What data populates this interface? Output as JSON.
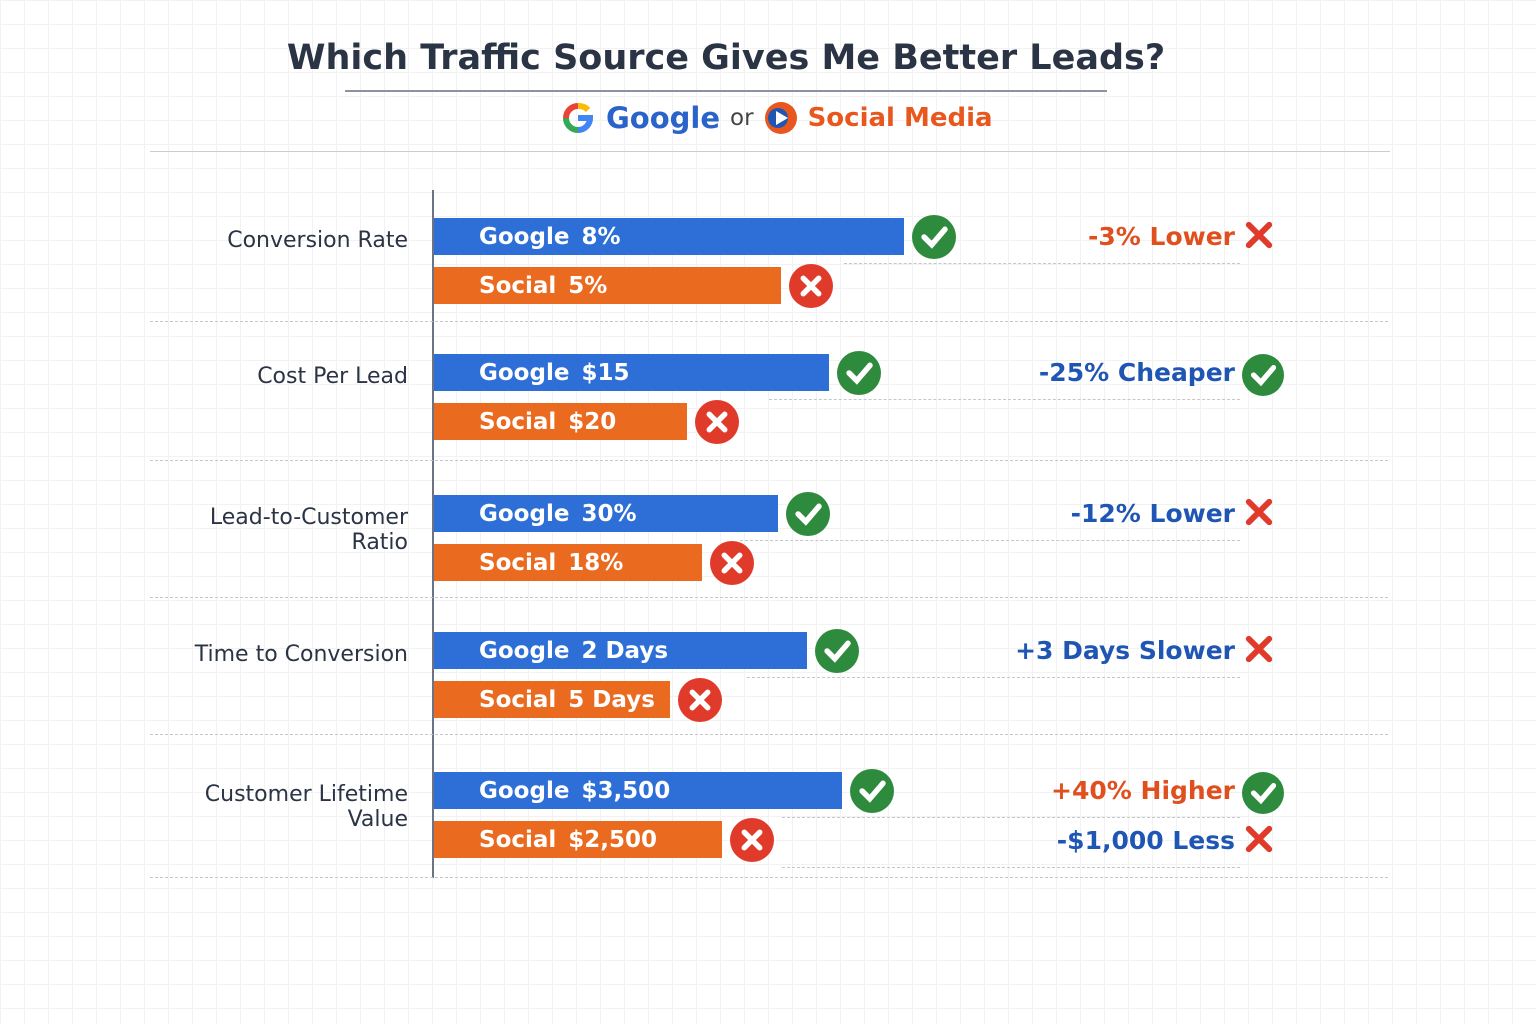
{
  "header": {
    "title": "Which Traffic Source Gives Me Better Leads?",
    "option_a": "Google",
    "joiner": "or",
    "option_b": "Social Media"
  },
  "rows": [
    {
      "metric": "Conversion Rate",
      "google": {
        "source": "Google",
        "value": "8%"
      },
      "social": {
        "source": "Social",
        "value": "5%"
      },
      "notes": [
        {
          "text": "-3% Lower",
          "color": "#e0501e",
          "icon": "cross"
        }
      ]
    },
    {
      "metric": "Cost Per Lead",
      "google": {
        "source": "Google",
        "value": "$15"
      },
      "social": {
        "source": "Social",
        "value": "$20"
      },
      "notes": [
        {
          "text": "-25% Cheaper",
          "color": "#1f56b3",
          "icon": "check"
        }
      ]
    },
    {
      "metric": "Lead-to-Customer Ratio",
      "google": {
        "source": "Google",
        "value": "30%"
      },
      "social": {
        "source": "Social",
        "value": "18%"
      },
      "notes": [
        {
          "text": "-12% Lower",
          "color": "#1f56b3",
          "icon": "cross"
        }
      ]
    },
    {
      "metric": "Time to Conversion",
      "google": {
        "source": "Google",
        "value": "2 Days"
      },
      "social": {
        "source": "Social",
        "value": "5 Days"
      },
      "notes": [
        {
          "text": "+3 Days Slower",
          "color": "#1f56b3",
          "icon": "cross"
        }
      ]
    },
    {
      "metric": "Customer Lifetime Value",
      "google": {
        "source": "Google",
        "value": "$3,500"
      },
      "social": {
        "source": "Social",
        "value": "$2,500"
      },
      "notes": [
        {
          "text": "+40% Higher",
          "color": "#e0501e",
          "icon": "check"
        },
        {
          "text": "-$1,000 Less",
          "color": "#1f56b3",
          "icon": "cross"
        }
      ]
    }
  ]
}
